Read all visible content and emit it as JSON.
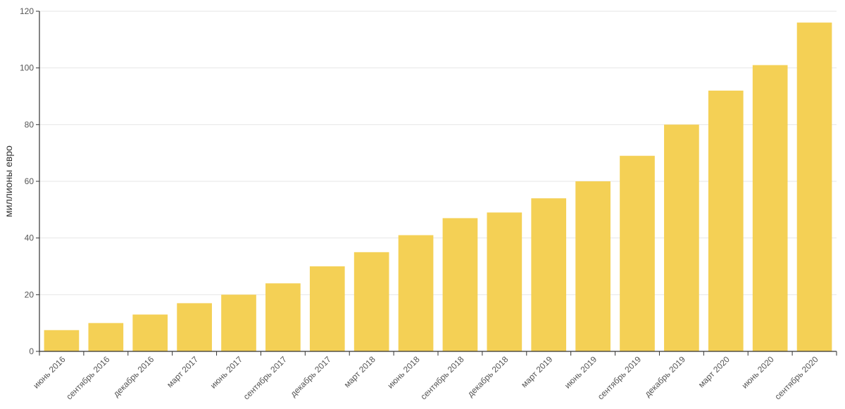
{
  "chart_data": {
    "type": "bar",
    "title": "",
    "xlabel": "",
    "ylabel": "миллионы евро",
    "ylim": [
      0,
      120
    ],
    "yticks": [
      0,
      20,
      40,
      60,
      80,
      100,
      120
    ],
    "grid": true,
    "bar_color": "#F4D055",
    "categories": [
      "июнь 2016",
      "сентябрь 2016",
      "декабрь 2016",
      "март 2017",
      "июнь 2017",
      "сентябрь 2017",
      "декабрь 2017",
      "март 2018",
      "июнь 2018",
      "сентябрь 2018",
      "декабрь 2018",
      "март 2019",
      "июнь 2019",
      "сентябрь 2019",
      "декабрь 2019",
      "март 2020",
      "июнь 2020",
      "сентябрь 2020"
    ],
    "values": [
      7.5,
      10,
      13,
      17,
      20,
      24,
      30,
      35,
      41,
      47,
      49,
      54,
      60,
      69,
      80,
      92,
      101,
      116
    ]
  }
}
